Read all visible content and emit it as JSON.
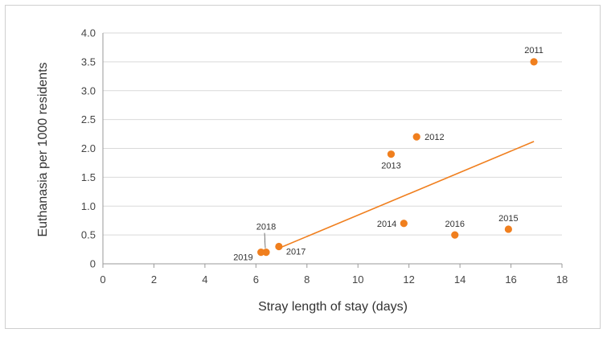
{
  "chart_data": {
    "type": "scatter",
    "title": "",
    "xlabel": "Stray length of stay (days)",
    "ylabel": "Euthanasia per 1000 residents",
    "xlim": [
      0,
      18
    ],
    "ylim": [
      0,
      4.0
    ],
    "x_ticks": [
      "0",
      "2",
      "4",
      "6",
      "8",
      "10",
      "12",
      "14",
      "16",
      "18"
    ],
    "y_ticks": [
      "0",
      "0.5",
      "1.0",
      "1.5",
      "2.0",
      "2.5",
      "3.0",
      "3.5",
      "4.0"
    ],
    "grid": "horizontal",
    "color": "#f07f1e",
    "points": [
      {
        "label": "2011",
        "x": 16.9,
        "y": 3.5
      },
      {
        "label": "2012",
        "x": 12.3,
        "y": 2.2
      },
      {
        "label": "2013",
        "x": 11.3,
        "y": 1.9
      },
      {
        "label": "2014",
        "x": 11.8,
        "y": 0.7
      },
      {
        "label": "2015",
        "x": 15.9,
        "y": 0.6
      },
      {
        "label": "2016",
        "x": 13.8,
        "y": 0.5
      },
      {
        "label": "2017",
        "x": 6.9,
        "y": 0.3
      },
      {
        "label": "2018",
        "x": 6.4,
        "y": 0.2
      },
      {
        "label": "2019",
        "x": 6.2,
        "y": 0.2
      }
    ],
    "trendline": {
      "x": [
        6.9,
        16.9
      ],
      "y": [
        0.27,
        2.12
      ]
    }
  }
}
